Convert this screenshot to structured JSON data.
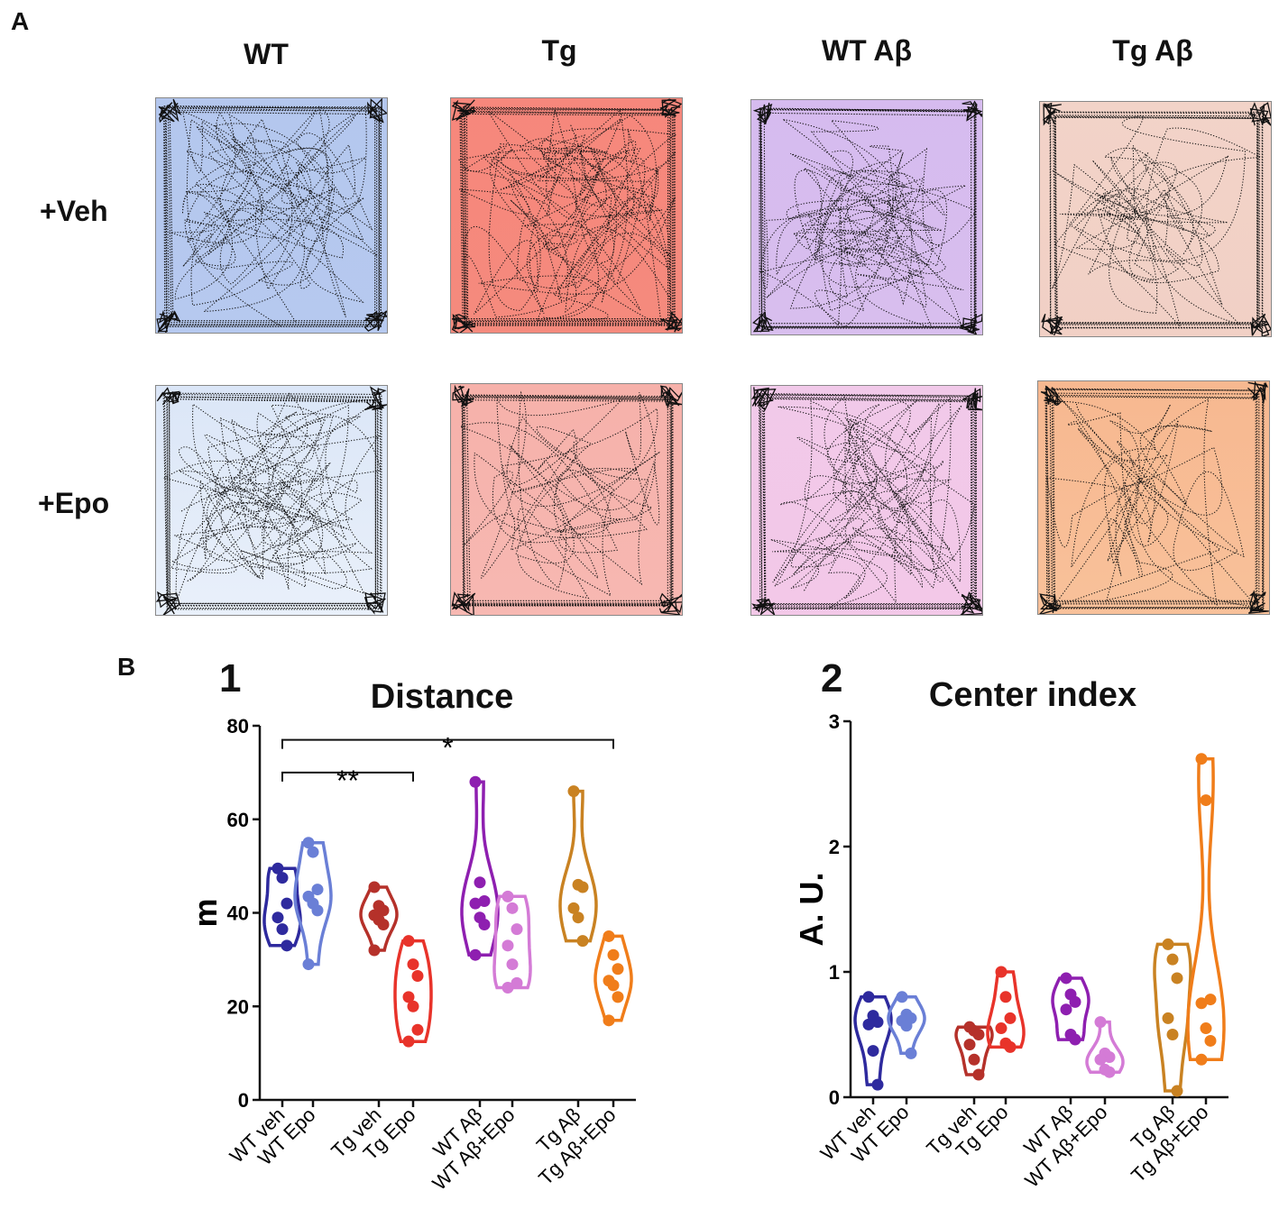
{
  "figure": {
    "panel_a_label": "A",
    "panel_b_label": "B",
    "columns": [
      "WT",
      "Tg",
      "WT Aβ",
      "Tg Aβ"
    ],
    "rows": [
      "+Veh",
      "+Epo"
    ],
    "arenas": [
      {
        "name": "WT +Veh",
        "fill_top": "#b4c7ee",
        "fill_bottom": "#b6c9ef",
        "density": 60
      },
      {
        "name": "Tg +Veh",
        "fill_top": "#f6877c",
        "fill_bottom": "#f58a7d",
        "density": 75
      },
      {
        "name": "WT Aβ +Veh",
        "fill_top": "#d6bbef",
        "fill_bottom": "#d8beee",
        "density": 65
      },
      {
        "name": "Tg Aβ +Veh",
        "fill_top": "#f2d3c8",
        "fill_bottom": "#f1d0c5",
        "density": 45
      },
      {
        "name": "WT +Epo",
        "fill_top": "#dbe6f7",
        "fill_bottom": "#e9f0fa",
        "density": 70
      },
      {
        "name": "Tg +Epo",
        "fill_top": "#f6b1aa",
        "fill_bottom": "#f7b8b2",
        "density": 40
      },
      {
        "name": "WT Aβ +Epo",
        "fill_top": "#f1c9e9",
        "fill_bottom": "#f3c8e8",
        "density": 60
      },
      {
        "name": "Tg Aβ +Epo",
        "fill_top": "#f7b890",
        "fill_bottom": "#f8c19a",
        "density": 35
      }
    ]
  },
  "chart_data": [
    {
      "type": "violin",
      "panel_number": "1",
      "title": "Distance",
      "ylabel": "m",
      "ylim": [
        0,
        80
      ],
      "yticks": [
        "0",
        "20",
        "40",
        "60",
        "80"
      ],
      "categories": [
        "WT veh",
        "WT Epo",
        "Tg veh",
        "Tg Epo",
        "WT Aβ",
        "WT Aβ+Epo",
        "Tg Aβ",
        "Tg Aβ+Epo"
      ],
      "colors": [
        "#2e2a9e",
        "#6a7fd6",
        "#b5312a",
        "#e8332a",
        "#8e1fb0",
        "#d47bd6",
        "#c98222",
        "#f07d1a"
      ],
      "series": [
        {
          "name": "WT veh",
          "values": [
            49.5,
            47.5,
            42,
            39,
            36.5,
            33
          ]
        },
        {
          "name": "WT Epo",
          "values": [
            55,
            53,
            45,
            43.5,
            42,
            40.5,
            29
          ]
        },
        {
          "name": "Tg veh",
          "values": [
            45.5,
            41.5,
            40.5,
            39.5,
            38.5,
            37.5,
            32
          ]
        },
        {
          "name": "Tg Epo",
          "values": [
            34,
            29,
            26.5,
            22,
            20,
            15,
            12.5
          ]
        },
        {
          "name": "WT Aβ",
          "values": [
            68,
            46.5,
            42.5,
            42,
            39,
            37.5,
            31
          ]
        },
        {
          "name": "WT Aβ+Epo",
          "values": [
            43.5,
            41,
            36.5,
            33,
            29,
            25,
            24
          ]
        },
        {
          "name": "Tg Aβ",
          "values": [
            66,
            46,
            45.5,
            41,
            39,
            34
          ]
        },
        {
          "name": "Tg Aβ+Epo",
          "values": [
            35,
            31,
            28,
            25.5,
            24.5,
            22,
            17
          ]
        }
      ],
      "annotations": [
        {
          "from": "WT veh",
          "to": "Tg Epo",
          "text": "**",
          "y": 70
        },
        {
          "from": "WT veh",
          "to": "Tg Aβ+Epo",
          "text": "*",
          "y": 77
        }
      ]
    },
    {
      "type": "violin",
      "panel_number": "2",
      "title": "Center index",
      "ylabel": "A. U.",
      "ylim": [
        0,
        3
      ],
      "yticks": [
        "0",
        "1",
        "2",
        "3"
      ],
      "categories": [
        "WT veh",
        "WT Epo",
        "Tg veh",
        "Tg Epo",
        "WT Aβ",
        "WT Aβ+Epo",
        "Tg Aβ",
        "Tg Aβ+Epo"
      ],
      "colors": [
        "#2e2a9e",
        "#6a7fd6",
        "#b5312a",
        "#e8332a",
        "#8e1fb0",
        "#d47bd6",
        "#c98222",
        "#f07d1a"
      ],
      "series": [
        {
          "name": "WT veh",
          "values": [
            0.8,
            0.65,
            0.6,
            0.58,
            0.37,
            0.1
          ]
        },
        {
          "name": "WT Epo",
          "values": [
            0.8,
            0.66,
            0.63,
            0.61,
            0.57,
            0.35
          ]
        },
        {
          "name": "Tg veh",
          "values": [
            0.56,
            0.53,
            0.5,
            0.42,
            0.3,
            0.18
          ]
        },
        {
          "name": "Tg Epo",
          "values": [
            1.0,
            0.8,
            0.63,
            0.55,
            0.43,
            0.4
          ]
        },
        {
          "name": "WT Aβ",
          "values": [
            0.95,
            0.82,
            0.76,
            0.7,
            0.5,
            0.46
          ]
        },
        {
          "name": "WT Aβ+Epo",
          "values": [
            0.6,
            0.35,
            0.32,
            0.3,
            0.22,
            0.2
          ]
        },
        {
          "name": "Tg Aβ",
          "values": [
            1.22,
            1.1,
            0.95,
            0.63,
            0.5,
            0.05
          ]
        },
        {
          "name": "Tg Aβ+Epo",
          "values": [
            2.7,
            2.37,
            0.78,
            0.75,
            0.55,
            0.45,
            0.3
          ]
        }
      ]
    }
  ]
}
